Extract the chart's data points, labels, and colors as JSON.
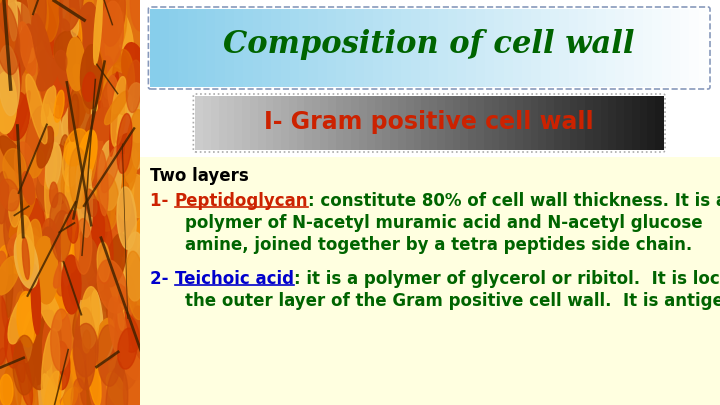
{
  "title": "Composition of cell wall",
  "title_color": "#006400",
  "subtitle": "I- Gram positive cell wall",
  "subtitle_color": "#cc2200",
  "two_layers_text": "Two layers",
  "two_layers_color": "#000000",
  "item1_prefix": "1- ",
  "item1_label": "Peptidoglycan",
  "item1_colon_text": ": constitute 80% of cell wall thickness. It is a",
  "item1_line2": "polymer of N-acetyl muramic acid and N-acetyl glucose",
  "item1_line3": "amine, joined together by a tetra peptides side chain.",
  "item1_label_color": "#cc2200",
  "item1_text_color": "#006400",
  "item2_prefix": "2- ",
  "item2_label": "Teichoic acid",
  "item2_colon_text": ": it is a polymer of glycerol or ribitol.  It is located in",
  "item2_line2": "the outer layer of the Gram positive cell wall.  It is antigenic.",
  "item2_label_color": "#0000cc",
  "item2_text_color": "#006400",
  "bg_color": "#ffffe0",
  "figsize": [
    7.2,
    4.05
  ],
  "dpi": 100
}
